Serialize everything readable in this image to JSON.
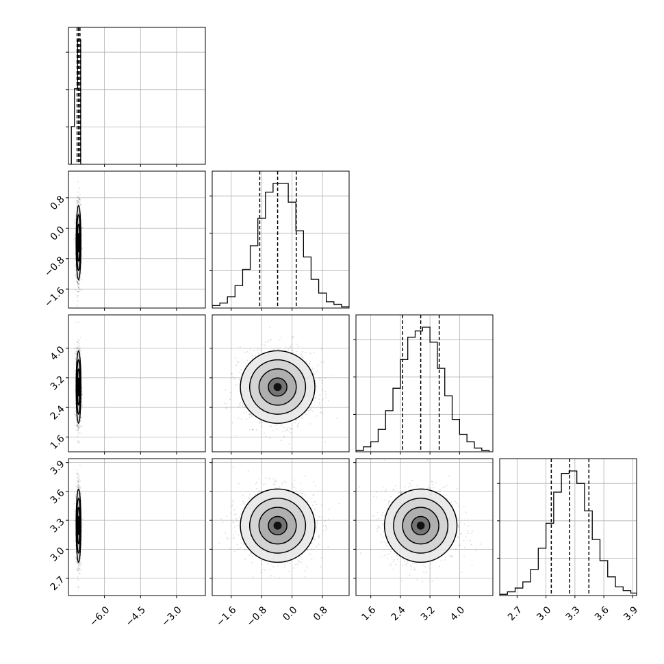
{
  "chart_data": {
    "type": "corner",
    "grid": true,
    "colors": {
      "ink": "#000000",
      "grid": "#b0b0b0",
      "scatter": "#000000"
    },
    "parameters": [
      {
        "range": [
          -7.5,
          -1.8
        ],
        "ticks": [
          -6.0,
          -4.5,
          -3.0
        ],
        "tick_labels": [
          "−6.0",
          "−4.5",
          "−3.0"
        ],
        "quantiles": [
          -7.14,
          -7.08,
          -7.02
        ],
        "histogram": {
          "edges": [
            -7.5,
            -7.38,
            -7.25,
            -7.12,
            -6.99,
            -6.86
          ],
          "counts": [
            0,
            0.5,
            1.0,
            1.65,
            0
          ]
        }
      },
      {
        "range": [
          -2.1,
          1.5
        ],
        "ticks": [
          -1.6,
          -0.8,
          0.0,
          0.8
        ],
        "tick_labels": [
          "−1.6",
          "−0.8",
          "0.0",
          "0.8"
        ],
        "quantiles": [
          -0.85,
          -0.38,
          0.11
        ],
        "histogram": {
          "edges": [
            -2.1,
            -1.9,
            -1.7,
            -1.5,
            -1.3,
            -1.1,
            -0.9,
            -0.7,
            -0.5,
            -0.3,
            -0.1,
            0.1,
            0.3,
            0.5,
            0.7,
            0.9,
            1.1,
            1.3,
            1.5
          ],
          "counts": [
            0.02,
            0.04,
            0.09,
            0.18,
            0.31,
            0.5,
            0.72,
            0.93,
            1.0,
            1.0,
            0.85,
            0.62,
            0.41,
            0.23,
            0.12,
            0.05,
            0.03,
            0.01
          ]
        }
      },
      {
        "range": [
          1.2,
          4.9
        ],
        "ticks": [
          1.6,
          2.4,
          3.2,
          4.0
        ],
        "tick_labels": [
          "1.6",
          "2.4",
          "3.2",
          "4.0"
        ],
        "quantiles": [
          2.46,
          2.95,
          3.45
        ],
        "histogram": {
          "edges": [
            1.2,
            1.4,
            1.6,
            1.8,
            2.0,
            2.2,
            2.4,
            2.6,
            2.8,
            3.0,
            3.2,
            3.4,
            3.6,
            3.8,
            4.0,
            4.2,
            4.4,
            4.6,
            4.8
          ],
          "counts": [
            0.01,
            0.04,
            0.08,
            0.18,
            0.33,
            0.51,
            0.74,
            0.92,
            0.97,
            1.0,
            0.88,
            0.67,
            0.45,
            0.26,
            0.14,
            0.08,
            0.03,
            0.01
          ]
        }
      },
      {
        "range": [
          2.52,
          3.94
        ],
        "ticks": [
          2.7,
          3.0,
          3.3,
          3.6,
          3.9
        ],
        "tick_labels": [
          "2.7",
          "3.0",
          "3.3",
          "3.6",
          "3.9"
        ],
        "quantiles": [
          3.055,
          3.245,
          3.445
        ],
        "histogram": {
          "edges": [
            2.52,
            2.6,
            2.68,
            2.76,
            2.84,
            2.92,
            3.0,
            3.08,
            3.16,
            3.24,
            3.32,
            3.4,
            3.48,
            3.56,
            3.64,
            3.72,
            3.8,
            3.88,
            3.94
          ],
          "counts": [
            0.01,
            0.03,
            0.06,
            0.11,
            0.21,
            0.38,
            0.58,
            0.83,
            0.98,
            1.0,
            0.9,
            0.68,
            0.45,
            0.28,
            0.15,
            0.07,
            0.04,
            0.02
          ]
        }
      }
    ],
    "scatter_centers": [
      -7.08,
      -0.38,
      2.95,
      3.245
    ],
    "scatter_sigmas": [
      0.05,
      0.49,
      0.49,
      0.19
    ],
    "contour_levels_sigma": [
      0.5,
      1.0,
      1.5,
      2.0
    ]
  }
}
